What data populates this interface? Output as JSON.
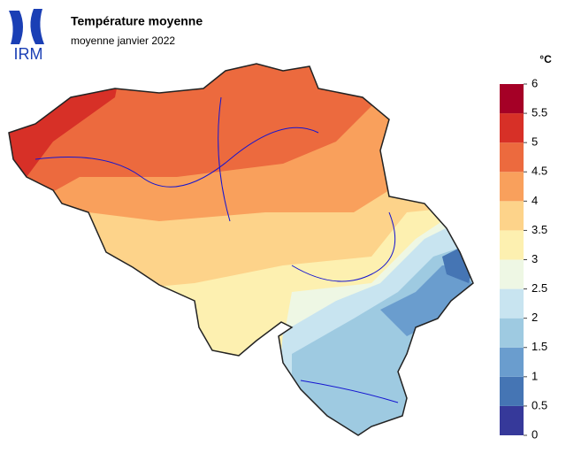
{
  "header": {
    "logo": "IRM",
    "title": "Température moyenne",
    "subtitle": "moyenne janvier 2022"
  },
  "legend": {
    "unit": "°C",
    "lim": [
      0,
      6
    ],
    "ticks": [
      0,
      0.5,
      1,
      1.5,
      2,
      2.5,
      3,
      3.5,
      4,
      4.5,
      5,
      5.5,
      6
    ],
    "colors": [
      "#36399a",
      "#4575b4",
      "#6a9dce",
      "#9ecae1",
      "#c8e4f0",
      "#eef7e4",
      "#fdf0b0",
      "#fdd38a",
      "#f9a05c",
      "#ec6a3e",
      "#d73027",
      "#a50026"
    ]
  }
}
